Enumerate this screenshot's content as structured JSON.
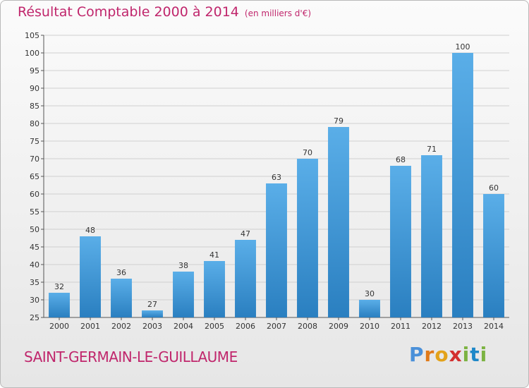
{
  "title": "Résultat Comptable 2000 à 2014",
  "subtitle": "(en milliers d'€)",
  "commune": "SAINT-GERMAIN-LE-GUILLAUME",
  "logo": {
    "letters": [
      "P",
      "r",
      "o",
      "x",
      "i",
      "t",
      "i"
    ],
    "colors": [
      "#4a90d9",
      "#e07a1a",
      "#e3a21a",
      "#d32f2f",
      "#7cb342",
      "#1e88c8",
      "#7cb342"
    ]
  },
  "colors": {
    "title": "#c0266c",
    "bar_top": "#5aaee8",
    "bar_bottom": "#2a7fc0",
    "grid": "#d0d0d0"
  },
  "chart_data": {
    "type": "bar",
    "title": "Résultat Comptable 2000 à 2014 (en milliers d'€)",
    "xlabel": "",
    "ylabel": "",
    "categories": [
      "2000",
      "2001",
      "2002",
      "2003",
      "2004",
      "2005",
      "2006",
      "2007",
      "2008",
      "2009",
      "2010",
      "2011",
      "2012",
      "2013",
      "2014"
    ],
    "values": [
      32,
      48,
      36,
      27,
      38,
      41,
      47,
      63,
      70,
      79,
      30,
      68,
      71,
      100,
      60
    ],
    "ylim": [
      25,
      105
    ],
    "yticks": [
      25,
      30,
      35,
      40,
      45,
      50,
      55,
      60,
      65,
      70,
      75,
      80,
      85,
      90,
      95,
      100,
      105
    ],
    "grid": true
  }
}
